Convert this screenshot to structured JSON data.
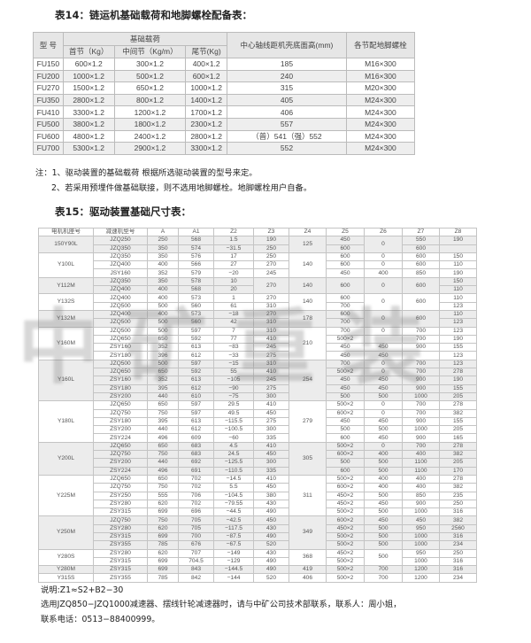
{
  "table14": {
    "title": "表14：链运机基础载荷和地脚螺栓配备表：",
    "header": {
      "model": "型 号",
      "load": "基础载荷",
      "head": "首节（Kg）",
      "mid": "中间节（Kg/m）",
      "tail": "尾节(Kg)",
      "height": "中心轴线距机壳底面高(mm)",
      "bolt": "各节配地脚螺栓"
    },
    "rows": [
      [
        "FU150",
        "600×1.2",
        "300×1.2",
        "400×1.2",
        "185",
        "M16×300"
      ],
      [
        "FU200",
        "1000×1.2",
        "500×1.2",
        "600×1.2",
        "240",
        "M16×300"
      ],
      [
        "FU270",
        "1500×1.2",
        "650×1.2",
        "1000×1.2",
        "315",
        "M20×300"
      ],
      [
        "FU350",
        "2800×1.2",
        "800×1.2",
        "1400×1.2",
        "405",
        "M24×300"
      ],
      [
        "FU410",
        "3300×1.2",
        "1200×1.2",
        "1700×1.2",
        "406",
        "M24×300"
      ],
      [
        "FU500",
        "3800×1.2",
        "1800×1.2",
        "2300×1.2",
        "557",
        "M24×300"
      ],
      [
        "FU600",
        "4800×1.2",
        "2400×1.2",
        "2800×1.2",
        "（普）541（强）552",
        "M24×300"
      ],
      [
        "FU700",
        "5300×1.2",
        "2900×1.2",
        "3300×1.2",
        "552",
        "M24×300"
      ]
    ]
  },
  "notes": [
    "注：1、驱动装置的基础载荷 根据所选驱动装置的型号来定。",
    "2、若采用预埋件做基础联接，则不选用地脚螺栓。地脚螺栓用户自备。"
  ],
  "table15": {
    "title": "表15：驱动装置基础尺寸表：",
    "columns": [
      "电机机座号",
      "减速机型号",
      "A",
      "A1",
      "Z2",
      "Z3",
      "Z4",
      "Z5",
      "Z6",
      "Z7",
      "Z8"
    ],
    "groups": [
      {
        "motor": "150Y90L",
        "z4": "125",
        "rows": [
          [
            "JZQ250",
            "250",
            "568",
            "1.5",
            "190",
            "450",
            {
              "v": "0",
              "span": 2
            },
            "550",
            "190"
          ],
          [
            "JZQ350",
            "350",
            "574",
            "−31.5",
            "250",
            "600",
            null,
            "600",
            ""
          ]
        ]
      },
      {
        "motor": "Y100L",
        "z4": "140",
        "rows": [
          [
            "JZQ350",
            "350",
            "576",
            "17",
            "250",
            "600",
            "0",
            "600",
            "150"
          ],
          [
            "JZQ400",
            "400",
            "566",
            "27",
            "270",
            "600",
            "0",
            "600",
            "110"
          ],
          [
            "JSY160",
            "352",
            "579",
            "−20",
            "245",
            "450",
            "400",
            "850",
            "190"
          ]
        ]
      },
      {
        "motor": "Y112M",
        "z4": "140",
        "rows": [
          [
            "JZQ350",
            "350",
            "578",
            "10",
            {
              "v": "270",
              "span": 2
            },
            {
              "v": "600",
              "span": 2
            },
            {
              "v": "0",
              "span": 2
            },
            {
              "v": "600",
              "span": 2
            },
            "150"
          ],
          [
            "JZQ400",
            "400",
            "568",
            "20",
            null,
            null,
            null,
            null,
            "110"
          ]
        ]
      },
      {
        "motor": "Y132S",
        "z4": "140",
        "rows": [
          [
            "JZQ400",
            "400",
            "573",
            "1",
            "270",
            "600",
            {
              "v": "0",
              "span": 2
            },
            {
              "v": "600",
              "span": 2
            },
            "110"
          ],
          [
            "JZQ500",
            "500",
            "560",
            "61",
            "310",
            "700",
            null,
            null,
            "123"
          ]
        ]
      },
      {
        "motor": "Y132M",
        "z4": "178",
        "rows": [
          [
            "JZQ400",
            "400",
            "573",
            "−18",
            "270",
            "600",
            {
              "v": "0",
              "span": 2
            },
            {
              "v": "600",
              "span": 2
            },
            "110"
          ],
          [
            "JZQ500",
            "500",
            "560",
            "42",
            "310",
            "700",
            null,
            null,
            "123"
          ]
        ]
      },
      {
        "motor": "Y160M",
        "z4": "210",
        "rows": [
          [
            "JZQ500",
            "500",
            "597",
            "7",
            "310",
            "700",
            "0",
            "700",
            "123"
          ],
          [
            "JZQ650",
            "650",
            "592",
            "77",
            "410",
            "500×2",
            "",
            "700",
            "190"
          ],
          [
            "ZSY160",
            "352",
            "613",
            "−83",
            "245",
            "450",
            "450",
            "900",
            "155"
          ],
          [
            "ZSY180",
            "396",
            "612",
            "−33",
            "275",
            "450",
            "450",
            "",
            "123"
          ]
        ]
      },
      {
        "motor": "Y160L",
        "z4": "254",
        "rows": [
          [
            "JZQ500",
            "500",
            "597",
            "−15",
            "310",
            "700",
            "0",
            "700",
            "123"
          ],
          [
            "JZQ650",
            "650",
            "592",
            "55",
            "410",
            "500×2",
            "0",
            "700",
            "278"
          ],
          [
            "ZSY160",
            "352",
            "613",
            "−105",
            "245",
            "450",
            "450",
            "900",
            "190"
          ],
          [
            "ZSY180",
            "395",
            "612",
            "−90",
            "275",
            "450",
            "450",
            "900",
            "155"
          ],
          [
            "ZSY200",
            "440",
            "610",
            "−75",
            "300",
            "500",
            "500",
            "1000",
            "205"
          ]
        ]
      },
      {
        "motor": "Y180L",
        "z4": "279",
        "rows": [
          [
            "JZQ650",
            "650",
            "597",
            "29.5",
            "410",
            "500×2",
            "0",
            "700",
            "278"
          ],
          [
            "JZQ750",
            "750",
            "597",
            "49.5",
            "450",
            "600×2",
            "0",
            "700",
            "382"
          ],
          [
            "ZSY180",
            "395",
            "613",
            "−115.5",
            "275",
            "450",
            "450",
            "900",
            "155"
          ],
          [
            "ZSY200",
            "440",
            "612",
            "−100.5",
            "300",
            "500",
            "500",
            "1000",
            "205"
          ],
          [
            "ZSY224",
            "496",
            "609",
            "−60",
            "335",
            "600",
            "450",
            "900",
            "165"
          ]
        ]
      },
      {
        "motor": "Y200L",
        "z4": "305",
        "rows": [
          [
            "JZQ650",
            "650",
            "683",
            "4.5",
            "410",
            "500×2",
            "0",
            "700",
            "278"
          ],
          [
            "JZQ750",
            "750",
            "683",
            "24.5",
            "450",
            "600×2",
            "400",
            "400",
            "382"
          ],
          [
            "ZSY200",
            "440",
            "692",
            "−125.5",
            "300",
            "500",
            "500",
            "1100",
            "205"
          ],
          [
            "ZSY224",
            "496",
            "691",
            "−110.5",
            "335",
            "600",
            "500",
            "1100",
            "170"
          ]
        ]
      },
      {
        "motor": "Y225M",
        "z4": "311",
        "rows": [
          [
            "JZQ650",
            "650",
            "702",
            "−14.5",
            "410",
            "500×2",
            "400",
            "400",
            "278"
          ],
          [
            "JZQ750",
            "750",
            "702",
            "5.5",
            "450",
            "600×2",
            "400",
            "400",
            "382"
          ],
          [
            "ZSY250",
            "555",
            "706",
            "−104.5",
            "380",
            "450×2",
            "500",
            "850",
            "235"
          ],
          [
            "ZSY280",
            "620",
            "702",
            "−79.55",
            "430",
            "450×2",
            "450",
            "900",
            "250"
          ],
          [
            "ZSY315",
            "699",
            "696",
            "−44.5",
            "490",
            "500×2",
            "500",
            "1000",
            "316"
          ]
        ]
      },
      {
        "motor": "Y250M",
        "z4": "349",
        "rows": [
          [
            "JZQ750",
            "750",
            "705",
            "−42.5",
            "450",
            "600×2",
            "450",
            "450",
            "382"
          ],
          [
            "ZSY280",
            "620",
            "705",
            "−117.5",
            "430",
            "450×2",
            "500",
            "950",
            "2560"
          ],
          [
            "ZSY315",
            "699",
            "700",
            "−87.5",
            "490",
            "500×2",
            "500",
            "1000",
            "316"
          ],
          [
            "ZSY355",
            "785",
            "676",
            "−67.5",
            "520",
            "500×2",
            "500",
            "1000",
            "234"
          ]
        ]
      },
      {
        "motor": "Y280S",
        "z4": "368",
        "rows": [
          [
            "ZSY280",
            "620",
            "707",
            "−149",
            "430",
            "450×2",
            {
              "v": "500",
              "span": 2
            },
            "950",
            "250"
          ],
          [
            "ZSY315",
            "699",
            "704.5",
            "−129",
            "490",
            "500×2",
            null,
            "1000",
            "316"
          ]
        ]
      },
      {
        "motor": "Y280M",
        "z4": "419",
        "rows": [
          [
            "ZSY315",
            "699",
            "843",
            "−144.5",
            "490",
            "500×2",
            "700",
            "1200",
            "316"
          ]
        ]
      },
      {
        "motor": "Y315S",
        "z4": "406",
        "rows": [
          [
            "ZSY355",
            "785",
            "842",
            "−144",
            "520",
            "500×2",
            "700",
            "1200",
            "234"
          ]
        ]
      }
    ]
  },
  "footer": [
    "说明:Z1≈S2+B2−30",
    "选用JZQ850−JZQ1000减速器、摆线针轮减速器时，请与中矿公司技术部联系，联系人：周小姐，",
    "联系电话：0513−88400999。"
  ],
  "watermark": "中矿重装",
  "colors": {
    "header_bg": "#e6e6e6",
    "stripe": "#ececec",
    "border": "#bbbbbb"
  }
}
